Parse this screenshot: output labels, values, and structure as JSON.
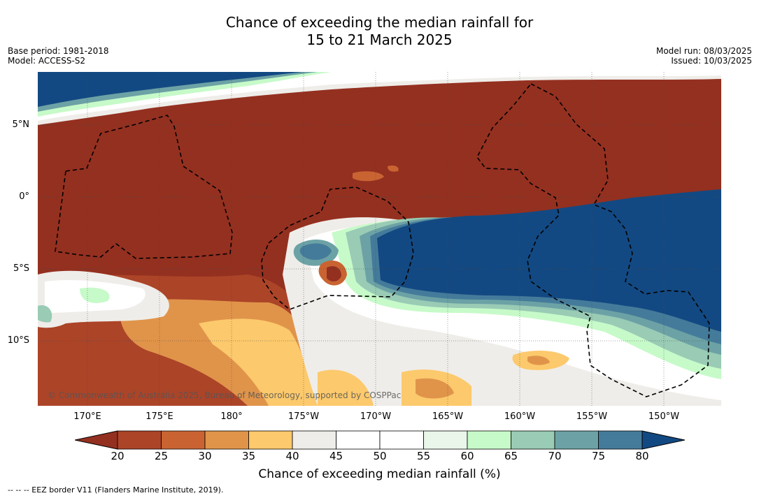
{
  "title_line1": "Chance of exceeding the median rainfall for",
  "title_line2": "15 to 21 March 2025",
  "meta_left": {
    "base_period": "Base period: 1981-2018",
    "model": "Model: ACCESS-S2"
  },
  "meta_right": {
    "model_run": "Model run: 08/03/2025",
    "issued": "Issued: 10/03/2025"
  },
  "lat_labels": [
    "5°N",
    "0°",
    "5°S",
    "10°S"
  ],
  "lon_labels": [
    "170°E",
    "175°E",
    "180°",
    "175°W",
    "170°W",
    "165°W",
    "160°W",
    "155°W",
    "150°W"
  ],
  "copyright": "© Commonwealth of Australia 2025, Bureau of Meteorology, supported by COSPPac",
  "colorbar": {
    "ticks": [
      "20",
      "25",
      "30",
      "35",
      "40",
      "45",
      "50",
      "55",
      "60",
      "65",
      "70",
      "75",
      "80"
    ],
    "colors": [
      "#943020",
      "#ac4428",
      "#c96432",
      "#e0944a",
      "#fcc96c",
      "#efede9",
      "#ffffff",
      "#ffffff",
      "#e9f6e9",
      "#c7fac9",
      "#99cbb5",
      "#6ca2a5",
      "#457b9a",
      "#134982"
    ],
    "label": "Chance of exceeding median rainfall (%)"
  },
  "legend_note": "--  --  -- EEZ border V11 (Flanders Marine Institute, 2019)."
}
